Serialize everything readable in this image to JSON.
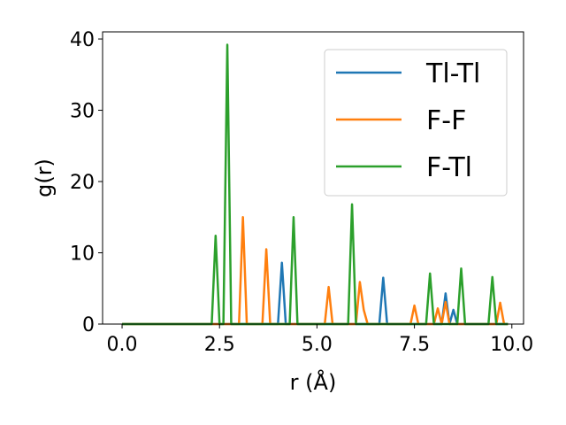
{
  "chart_data": {
    "type": "line",
    "title": "",
    "xlabel": "r (Å)",
    "ylabel": "g(r)",
    "xlim": [
      -0.5,
      10.3
    ],
    "ylim": [
      0,
      41
    ],
    "xticks": [
      "0.0",
      "2.5",
      "5.0",
      "7.5",
      "10.0"
    ],
    "yticks": [
      "0",
      "10",
      "20",
      "30",
      "40"
    ],
    "grid": false,
    "legend_position": "top-right",
    "x": [
      0.0,
      0.1,
      0.2,
      0.3,
      0.4,
      0.5,
      0.6,
      0.7,
      0.8,
      0.9,
      1.0,
      1.1,
      1.2,
      1.3,
      1.4,
      1.5,
      1.6,
      1.7,
      1.8,
      1.9,
      2.0,
      2.1,
      2.2,
      2.3,
      2.4,
      2.5,
      2.6,
      2.7,
      2.8,
      2.9,
      3.0,
      3.1,
      3.2,
      3.3,
      3.4,
      3.5,
      3.6,
      3.7,
      3.8,
      3.9,
      4.0,
      4.1,
      4.2,
      4.3,
      4.4,
      4.5,
      4.6,
      4.7,
      4.8,
      4.9,
      5.0,
      5.1,
      5.2,
      5.3,
      5.4,
      5.5,
      5.6,
      5.7,
      5.8,
      5.9,
      6.0,
      6.1,
      6.2,
      6.3,
      6.4,
      6.5,
      6.6,
      6.7,
      6.8,
      6.9,
      7.0,
      7.1,
      7.2,
      7.3,
      7.4,
      7.5,
      7.6,
      7.7,
      7.8,
      7.9,
      8.0,
      8.1,
      8.2,
      8.3,
      8.4,
      8.5,
      8.6,
      8.7,
      8.8,
      8.9,
      9.0,
      9.1,
      9.2,
      9.3,
      9.4,
      9.5,
      9.6,
      9.7,
      9.8,
      9.9
    ],
    "series": [
      {
        "name": "Tl-Tl",
        "color": "#1f77b4",
        "values": [
          0,
          0,
          0,
          0,
          0,
          0,
          0,
          0,
          0,
          0,
          0,
          0,
          0,
          0,
          0,
          0,
          0,
          0,
          0,
          0,
          0,
          0,
          0,
          0,
          0,
          0,
          0,
          0,
          0,
          0,
          0,
          0,
          0,
          0,
          0,
          0,
          0,
          0,
          0,
          0,
          0,
          8.6,
          0,
          0,
          0,
          0,
          0,
          0,
          0,
          0,
          0,
          0,
          0,
          0,
          0,
          0,
          0,
          0,
          0,
          0,
          0,
          0,
          0,
          0,
          0,
          0,
          0,
          6.5,
          0,
          0,
          0,
          0,
          0,
          0,
          0,
          0,
          0,
          0,
          0,
          0,
          0,
          0,
          0,
          4.3,
          0,
          2.0,
          0,
          0,
          0,
          0,
          0,
          0,
          0,
          0,
          0,
          0,
          0,
          0,
          0,
          0
        ]
      },
      {
        "name": "F-F",
        "color": "#ff7f0e",
        "values": [
          0,
          0,
          0,
          0,
          0,
          0,
          0,
          0,
          0,
          0,
          0,
          0,
          0,
          0,
          0,
          0,
          0,
          0,
          0,
          0,
          0,
          0,
          0,
          0,
          0,
          0,
          0,
          0,
          0,
          0,
          0,
          15.0,
          0,
          0,
          0,
          0,
          0,
          10.5,
          0,
          0,
          0,
          0,
          0,
          0,
          0,
          0,
          0,
          0,
          0,
          0,
          0,
          0,
          0,
          5.2,
          0,
          0,
          0,
          0,
          0,
          0,
          0,
          5.9,
          2.0,
          0,
          0,
          0,
          0,
          0,
          0,
          0,
          0,
          0,
          0,
          0,
          0,
          2.6,
          0,
          0,
          0,
          0,
          0,
          2.2,
          0,
          3.1,
          0,
          0,
          0,
          0,
          0,
          0,
          0,
          0,
          0,
          0,
          0,
          0,
          0,
          3.0,
          0,
          0
        ]
      },
      {
        "name": "F-Tl",
        "color": "#2ca02c",
        "values": [
          0,
          0,
          0,
          0,
          0,
          0,
          0,
          0,
          0,
          0,
          0,
          0,
          0,
          0,
          0,
          0,
          0,
          0,
          0,
          0,
          0,
          0,
          0,
          0,
          12.4,
          0,
          0,
          39.2,
          0,
          0,
          0,
          0,
          0,
          0,
          0,
          0,
          0,
          0,
          0,
          0,
          0,
          0,
          0,
          0,
          15.0,
          0,
          0,
          0,
          0,
          0,
          0,
          0,
          0,
          0,
          0,
          0,
          0,
          0,
          0,
          16.8,
          0,
          0,
          0,
          0,
          0,
          0,
          0,
          0,
          0,
          0,
          0,
          0,
          0,
          0,
          0,
          0,
          0,
          0,
          0,
          7.1,
          0,
          0,
          0,
          0,
          0,
          0,
          0,
          7.8,
          0,
          0,
          0,
          0,
          0,
          0,
          0,
          6.6,
          0,
          0,
          0,
          0
        ]
      }
    ]
  }
}
